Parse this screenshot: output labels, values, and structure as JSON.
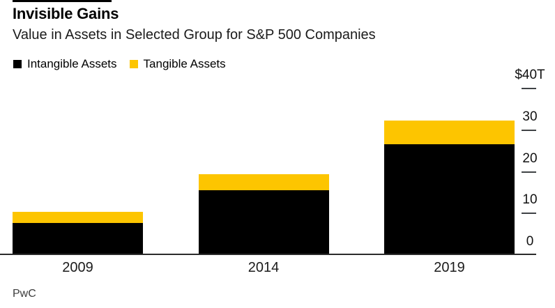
{
  "header": {
    "title": "Invisible Gains",
    "subtitle": "Value in Assets in Selected Group for S&P 500 Companies"
  },
  "legend": {
    "items": [
      {
        "label": "Intangible Assets",
        "color": "#000000"
      },
      {
        "label": "Tangible Assets",
        "color": "#FDC500"
      }
    ]
  },
  "source": "PwC",
  "colors": {
    "intangible": "#000000",
    "tangible": "#FDC500",
    "axis_line": "#2b2b2b",
    "tick_dash": "#3f4245",
    "background": "#ffffff"
  },
  "chart_data": {
    "type": "bar",
    "stacked": true,
    "title": "Invisible Gains",
    "subtitle": "Value in Assets in Selected Group for S&P 500 Companies",
    "unit": "trillions of US dollars",
    "categories": [
      "2009",
      "2014",
      "2019"
    ],
    "series": [
      {
        "name": "Intangible Assets",
        "color": "#000000",
        "values": [
          7.7,
          15.5,
          26.6
        ]
      },
      {
        "name": "Tangible Assets",
        "color": "#FDC500",
        "values": [
          2.7,
          4.0,
          5.8
        ]
      }
    ],
    "totals": [
      10.4,
      19.5,
      32.4
    ],
    "xlabel": "",
    "ylabel": "",
    "ylim": [
      0,
      40
    ],
    "yticks": [
      0,
      10,
      20,
      30,
      40
    ],
    "ytick_labels": [
      "0",
      "10",
      "20",
      "30",
      "$40T"
    ],
    "axis_side": "right",
    "grid": false,
    "legend_position": "top-left",
    "source": "PwC"
  }
}
